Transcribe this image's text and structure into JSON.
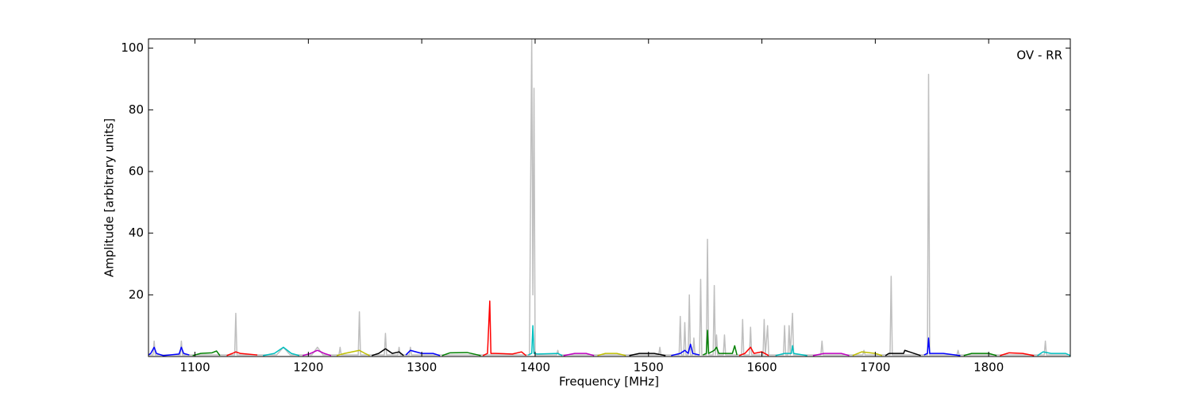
{
  "chart_data": {
    "type": "line",
    "annotation": "OV - RR",
    "xlabel": "Frequency [MHz]",
    "ylabel": "Amplitude [arbitrary units]",
    "xlim": [
      1059,
      1872
    ],
    "ylim": [
      0,
      103
    ],
    "xticks": [
      1100,
      1200,
      1300,
      1400,
      1500,
      1600,
      1700,
      1800
    ],
    "yticks": [
      20,
      40,
      60,
      80,
      100
    ],
    "grid": false,
    "series": [
      {
        "color": "#bfbfbf",
        "x": [
          1059,
          1063,
          1064,
          1065,
          1087,
          1088,
          1089,
          1135,
          1136,
          1137,
          1172,
          1178,
          1184,
          1203,
          1208,
          1213,
          1227,
          1228,
          1229,
          1244,
          1245,
          1246,
          1267,
          1268,
          1269,
          1279,
          1280,
          1281,
          1289,
          1290,
          1291,
          1395,
          1396,
          1397,
          1398,
          1399,
          1400,
          1419,
          1420,
          1421,
          1509,
          1510,
          1511,
          1527,
          1528,
          1529,
          1531,
          1532,
          1533,
          1535,
          1536,
          1537,
          1539,
          1540,
          1541,
          1545,
          1546,
          1547,
          1551,
          1552,
          1553,
          1557,
          1558,
          1559,
          1560,
          1561,
          1566,
          1567,
          1568,
          1582,
          1583,
          1584,
          1589,
          1590,
          1591,
          1601,
          1602,
          1603,
          1605,
          1606,
          1619,
          1620,
          1621,
          1623,
          1624,
          1625,
          1627,
          1628,
          1652,
          1653,
          1654,
          1689,
          1690,
          1691,
          1713,
          1714,
          1715,
          1746,
          1747,
          1748,
          1772,
          1773,
          1774,
          1849,
          1850,
          1851,
          1870
        ],
        "values": [
          0.5,
          0.5,
          5,
          0.5,
          0.5,
          5,
          0.5,
          0.5,
          14,
          0.5,
          0.5,
          3,
          0.5,
          0.5,
          3,
          0.5,
          0.5,
          3,
          0.5,
          0.5,
          14.5,
          0.5,
          0.5,
          7.5,
          0.5,
          0.5,
          3,
          0.5,
          0.5,
          3,
          0.5,
          0.5,
          53,
          103,
          20,
          87,
          0.5,
          0.5,
          2,
          0.5,
          0.5,
          3,
          0.5,
          0.5,
          13,
          0.5,
          0.5,
          11,
          0.5,
          0.5,
          20,
          0.5,
          0.5,
          6,
          0.5,
          0.5,
          25,
          0.5,
          0.5,
          38,
          0.5,
          0.5,
          23,
          0.5,
          7,
          0.5,
          0.5,
          7,
          0.5,
          0.5,
          12,
          0.5,
          0.5,
          9.5,
          0.5,
          0.5,
          12,
          0.5,
          10,
          0.5,
          0.5,
          10,
          0.5,
          0.5,
          10,
          0.5,
          14,
          0.5,
          0.5,
          5,
          0.5,
          0.5,
          2,
          0.5,
          0.5,
          26,
          0.5,
          0.5,
          91.5,
          0.5,
          0.5,
          2,
          0.5,
          0.5,
          5,
          0.5,
          0.5
        ]
      },
      {
        "color": "#0000ff",
        "x": [
          1059,
          1061,
          1064,
          1066,
          1072,
          1086,
          1088,
          1090,
          1095
        ],
        "values": [
          0.5,
          1,
          3,
          1,
          0.3,
          0.8,
          3,
          1,
          0.5
        ]
      },
      {
        "color": "#008000",
        "x": [
          1098,
          1105,
          1115,
          1119,
          1122
        ],
        "values": [
          0.3,
          1,
          1.2,
          1.8,
          0.3
        ]
      },
      {
        "color": "#ff0000",
        "x": [
          1128,
          1133,
          1136,
          1140,
          1155
        ],
        "values": [
          0.3,
          1,
          1.5,
          1,
          0.5
        ]
      },
      {
        "color": "#00bfbf",
        "x": [
          1160,
          1170,
          1178,
          1185,
          1192
        ],
        "values": [
          0.3,
          1,
          3,
          1,
          0.3
        ]
      },
      {
        "color": "#bf00bf",
        "x": [
          1195,
          1202,
          1208,
          1214,
          1220
        ],
        "values": [
          0.3,
          1,
          2,
          1,
          0.3
        ]
      },
      {
        "color": "#bfbf00",
        "x": [
          1225,
          1232,
          1245,
          1250,
          1254
        ],
        "values": [
          0.3,
          1,
          2,
          1,
          0.3
        ]
      },
      {
        "color": "#000000",
        "x": [
          1256,
          1262,
          1268,
          1274,
          1280,
          1284
        ],
        "values": [
          0.3,
          1,
          2.5,
          1,
          1.5,
          0.3
        ]
      },
      {
        "color": "#0000ff",
        "x": [
          1286,
          1290,
          1300,
          1310,
          1316
        ],
        "values": [
          0.5,
          2,
          1,
          1,
          0.3
        ]
      },
      {
        "color": "#008000",
        "x": [
          1318,
          1325,
          1340,
          1352
        ],
        "values": [
          0.3,
          1.2,
          1.3,
          0.3
        ]
      },
      {
        "color": "#ff0000",
        "x": [
          1354,
          1358,
          1360,
          1361,
          1365,
          1380,
          1388,
          1392
        ],
        "values": [
          0.3,
          1,
          18,
          1,
          1,
          0.8,
          1.5,
          0.3
        ]
      },
      {
        "color": "#00bfbf",
        "x": [
          1394,
          1397,
          1398,
          1399,
          1402,
          1420,
          1424
        ],
        "values": [
          0.5,
          1,
          10,
          1,
          0.8,
          1,
          0.3
        ]
      },
      {
        "color": "#bf00bf",
        "x": [
          1425,
          1435,
          1445,
          1452
        ],
        "values": [
          0.3,
          1,
          1,
          0.3
        ]
      },
      {
        "color": "#bfbf00",
        "x": [
          1455,
          1462,
          1472,
          1480
        ],
        "values": [
          0.3,
          1,
          1,
          0.3
        ]
      },
      {
        "color": "#000000",
        "x": [
          1483,
          1492,
          1505,
          1515
        ],
        "values": [
          0.3,
          1,
          1,
          0.3
        ]
      },
      {
        "color": "#0000ff",
        "x": [
          1520,
          1528,
          1532,
          1535,
          1537,
          1539,
          1545
        ],
        "values": [
          0.3,
          1,
          2,
          1,
          4,
          1,
          0.5
        ]
      },
      {
        "color": "#008000",
        "x": [
          1548,
          1551,
          1552,
          1553,
          1558,
          1560,
          1562,
          1574,
          1576,
          1578
        ],
        "values": [
          0.5,
          1,
          8.5,
          1,
          2,
          3,
          1,
          1,
          3.5,
          0.5
        ]
      },
      {
        "color": "#ff0000",
        "x": [
          1580,
          1585,
          1590,
          1593,
          1600,
          1606
        ],
        "values": [
          0.3,
          1,
          3,
          1,
          1.5,
          0.3
        ]
      },
      {
        "color": "#00bfbf",
        "x": [
          1612,
          1620,
          1626,
          1627,
          1628,
          1640
        ],
        "values": [
          0.3,
          1,
          1,
          3.5,
          1,
          0.3
        ]
      },
      {
        "color": "#bf00bf",
        "x": [
          1645,
          1655,
          1670,
          1677
        ],
        "values": [
          0.3,
          1,
          1,
          0.3
        ]
      },
      {
        "color": "#bfbf00",
        "x": [
          1680,
          1688,
          1700,
          1706
        ],
        "values": [
          0.3,
          1.5,
          1,
          0.3
        ]
      },
      {
        "color": "#000000",
        "x": [
          1709,
          1712,
          1714,
          1716,
          1725,
          1726,
          1740
        ],
        "values": [
          0.3,
          1,
          1,
          1,
          1,
          2,
          0.3
        ]
      },
      {
        "color": "#0000ff",
        "x": [
          1743,
          1746,
          1747,
          1748,
          1760,
          1775
        ],
        "values": [
          0.5,
          1,
          6,
          1,
          1,
          0.3
        ]
      },
      {
        "color": "#008000",
        "x": [
          1778,
          1785,
          1800,
          1807
        ],
        "values": [
          0.3,
          1,
          1,
          0.3
        ]
      },
      {
        "color": "#ff0000",
        "x": [
          1810,
          1818,
          1830,
          1840
        ],
        "values": [
          0.3,
          1.2,
          1,
          0.3
        ]
      },
      {
        "color": "#00bfbf",
        "x": [
          1843,
          1848,
          1855,
          1868,
          1872
        ],
        "values": [
          0.3,
          1.5,
          1,
          1,
          0.3
        ]
      }
    ]
  }
}
